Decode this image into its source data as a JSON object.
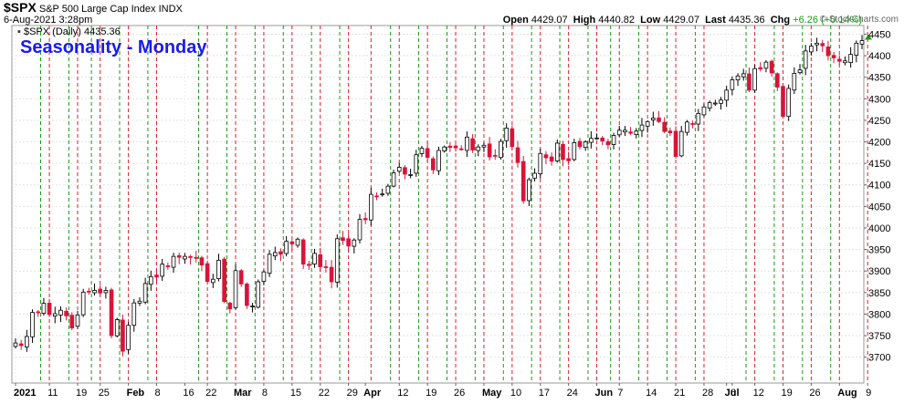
{
  "header": {
    "ticker": "$SPX",
    "name": "S&P 500 Large Cap Index",
    "exchange": "INDX",
    "datetime": "6-Aug-2021 3:28pm",
    "open_label": "Open",
    "open": "4429.07",
    "high_label": "High",
    "high": "4440.82",
    "low_label": "Low",
    "low": "4429.07",
    "last_label": "Last",
    "last": "4435.36",
    "chg_label": "Chg",
    "chg": "+6.26 (+0.14%)",
    "chg_color": "#1a9a1a",
    "watermark": "© StockCharts.com"
  },
  "legend": {
    "label": "$SPX (Daily) 4435.36"
  },
  "annotation": {
    "text": "Seasonality - Monday",
    "color": "#1a1aee"
  },
  "chart_data": {
    "type": "candlestick",
    "ylim": [
      3640,
      4470
    ],
    "y_ticks": [
      3700,
      3750,
      3800,
      3850,
      3900,
      3950,
      4000,
      4050,
      4100,
      4150,
      4200,
      4250,
      4300,
      4350,
      4400,
      4450
    ],
    "x_tick_labels": [
      {
        "label": "2021",
        "index": 0,
        "bold": true
      },
      {
        "label": "11",
        "index": 6
      },
      {
        "label": "19",
        "index": 11
      },
      {
        "label": "25",
        "index": 15
      },
      {
        "label": "Feb",
        "index": 20,
        "bold": true
      },
      {
        "label": "8",
        "index": 25
      },
      {
        "label": "16",
        "index": 30
      },
      {
        "label": "22",
        "index": 34
      },
      {
        "label": "Mar",
        "index": 39,
        "bold": true
      },
      {
        "label": "8",
        "index": 44
      },
      {
        "label": "15",
        "index": 49
      },
      {
        "label": "22",
        "index": 54
      },
      {
        "label": "29",
        "index": 59
      },
      {
        "label": "Apr",
        "index": 62,
        "bold": true
      },
      {
        "label": "12",
        "index": 68
      },
      {
        "label": "19",
        "index": 73
      },
      {
        "label": "26",
        "index": 78
      },
      {
        "label": "May",
        "index": 83,
        "bold": true
      },
      {
        "label": "10",
        "index": 88
      },
      {
        "label": "17",
        "index": 93
      },
      {
        "label": "24",
        "index": 98
      },
      {
        "label": "Jun",
        "index": 103,
        "bold": true
      },
      {
        "label": "7",
        "index": 107
      },
      {
        "label": "14",
        "index": 112
      },
      {
        "label": "21",
        "index": 117
      },
      {
        "label": "28",
        "index": 122
      },
      {
        "label": "Jul",
        "index": 126,
        "bold": true
      },
      {
        "label": "6",
        "index": 127
      },
      {
        "label": "12",
        "index": 131
      },
      {
        "label": "19",
        "index": 136
      },
      {
        "label": "26",
        "index": 141
      },
      {
        "label": "Aug",
        "index": 146,
        "bold": true
      },
      {
        "label": "9",
        "index": 151
      }
    ],
    "monday_line_indices": [
      6,
      11,
      15,
      20,
      25,
      34,
      39,
      44,
      49,
      54,
      59,
      63,
      68,
      73,
      78,
      83,
      88,
      93,
      98,
      103,
      107,
      112,
      117,
      122,
      131,
      136,
      141,
      146,
      151
    ],
    "pre_monday_line_indices": [
      5,
      10,
      14,
      19,
      24,
      33,
      38,
      43,
      48,
      53,
      58,
      67,
      72,
      77,
      82,
      87,
      92,
      97,
      102,
      106,
      111,
      116,
      121,
      130,
      135,
      140,
      145
    ],
    "red_line_color": "#e0202a",
    "green_line_color": "#1a9a1a",
    "up_color": "#ffffff",
    "down_color": "#d8143a",
    "grid": true,
    "axis_side": "right",
    "closes": [
      3733,
      3727,
      3748,
      3804,
      3804,
      3825,
      3799,
      3801,
      3809,
      3796,
      3768,
      3798,
      3851,
      3853,
      3855,
      3849,
      3855,
      3750,
      3787,
      3714,
      3774,
      3826,
      3830,
      3871,
      3887,
      3886,
      3916,
      3911,
      3934,
      3932,
      3934,
      3932,
      3931,
      3914,
      3876,
      3881,
      3925,
      3829,
      3812,
      3901,
      3870,
      3820,
      3819,
      3875,
      3898,
      3939,
      3943,
      3939,
      3969,
      3963,
      3974,
      3916,
      3913,
      3941,
      3910,
      3909,
      3875,
      3975,
      3971,
      3958,
      3972,
      4020,
      4019,
      4078,
      4074,
      4079,
      4097,
      4128,
      4141,
      4125,
      4124,
      4170,
      4185,
      4164,
      4135,
      4180,
      4188,
      4187,
      4186,
      4183,
      4211,
      4181,
      4188,
      4192,
      4165,
      4167,
      4201,
      4232,
      4189,
      4152,
      4063,
      4112,
      4127,
      4173,
      4163,
      4155,
      4197,
      4159,
      4156,
      4198,
      4189,
      4200,
      4208,
      4209,
      4202,
      4193,
      4215,
      4227,
      4227,
      4220,
      4225,
      4239,
      4247,
      4255,
      4247,
      4224,
      4221,
      4166,
      4224,
      4246,
      4241,
      4266,
      4281,
      4291,
      4290,
      4297,
      4320,
      4344,
      4353,
      4358,
      4320,
      4370,
      4369,
      4385,
      4360,
      4327,
      4259,
      4324,
      4359,
      4367,
      4411,
      4422,
      4429,
      4423,
      4400,
      4395,
      4387,
      4388,
      4403,
      4429,
      4435
    ]
  }
}
